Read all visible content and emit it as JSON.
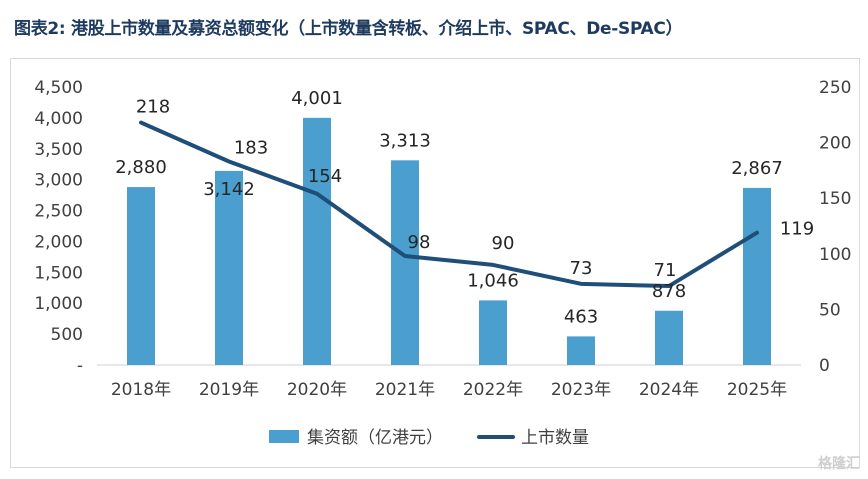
{
  "title": "图表2: 港股上市数量及募资总额变化（上市数量含转板、介绍上市、SPAC、De-SPAC）",
  "watermark": "格隆汇",
  "chart_data": {
    "type": "bar",
    "categories": [
      "2018年",
      "2019年",
      "2020年",
      "2021年",
      "2022年",
      "2023年",
      "2024年",
      "2025年"
    ],
    "series": [
      {
        "name": "集资额（亿港元）",
        "type": "bar",
        "axis": "left",
        "values": [
          2880,
          3142,
          4001,
          3313,
          1046,
          463,
          878,
          2867
        ],
        "labels": [
          "2,880",
          "3,142",
          "4,001",
          "3,313",
          "1,046",
          "463",
          "878",
          "2,867"
        ],
        "color": "#4a9fcf"
      },
      {
        "name": "上市数量",
        "type": "line",
        "axis": "right",
        "values": [
          218,
          183,
          154,
          98,
          90,
          73,
          71,
          119
        ],
        "labels": [
          "218",
          "183",
          "154",
          "98",
          "90",
          "73",
          "71",
          "119"
        ],
        "color": "#1f4e79"
      }
    ],
    "y_left": {
      "ylim": [
        0,
        4500
      ],
      "ticks": [
        "-",
        "500",
        "1,000",
        "1,500",
        "2,000",
        "2,500",
        "3,000",
        "3,500",
        "4,000",
        "4,500"
      ]
    },
    "y_right": {
      "ylim": [
        0,
        250
      ],
      "ticks": [
        "0",
        "50",
        "100",
        "150",
        "200",
        "250"
      ]
    },
    "grid": false,
    "legend": "bottom"
  }
}
